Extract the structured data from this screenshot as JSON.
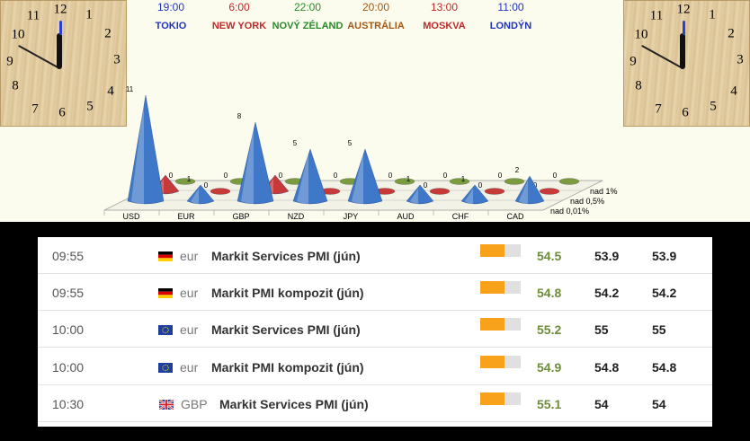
{
  "world_times": [
    {
      "time": "19:00",
      "city": "TOKIO",
      "color": "#2233bb"
    },
    {
      "time": "6:00",
      "city": "NEW YORK",
      "color": "#c0282a"
    },
    {
      "time": "22:00",
      "city": "NOVÝ ZÉLAND",
      "color": "#2a8a2a"
    },
    {
      "time": "20:00",
      "city": "AUSTRÁLIA",
      "color": "#a25a14"
    },
    {
      "time": "13:00",
      "city": "MOSKVA",
      "color": "#c0282a"
    },
    {
      "time": "11:00",
      "city": "LONDÝN",
      "color": "#2233bb"
    }
  ],
  "clock_numbers": [
    "12",
    "1",
    "2",
    "3",
    "4",
    "5",
    "6",
    "7",
    "8",
    "9",
    "10",
    "11"
  ],
  "chart_data": {
    "type": "bar",
    "categories": [
      "USD",
      "EUR",
      "GBP",
      "NZD",
      "JPY",
      "AUD",
      "CHF",
      "CAD"
    ],
    "series": [
      {
        "name": "nad 0,01%",
        "values": [
          11,
          1,
          8,
          5,
          5,
          1,
          1,
          2
        ]
      },
      {
        "name": "nad 0,5%",
        "values": [
          1,
          0,
          1,
          0,
          0,
          0,
          0,
          0
        ]
      },
      {
        "name": "nad 1%",
        "values": [
          0,
          0,
          0,
          0,
          0,
          0,
          0,
          0
        ]
      }
    ],
    "colors": [
      "#3f78c8",
      "#c63a3a",
      "#7a9c3e"
    ],
    "ylim": [
      0,
      11
    ]
  },
  "events": [
    {
      "time": "09:55",
      "flag": "de",
      "currency": "eur",
      "event": "Markit Services PMI (jún)",
      "impact": 0.6,
      "actual": "54.5",
      "forecast": "53.9",
      "previous": "53.9"
    },
    {
      "time": "09:55",
      "flag": "de",
      "currency": "eur",
      "event": "Markit PMI kompozit (jún)",
      "impact": 0.6,
      "actual": "54.8",
      "forecast": "54.2",
      "previous": "54.2"
    },
    {
      "time": "10:00",
      "flag": "eu",
      "currency": "eur",
      "event": "Markit Services PMI (jún)",
      "impact": 0.6,
      "actual": "55.2",
      "forecast": "55",
      "previous": "55"
    },
    {
      "time": "10:00",
      "flag": "eu",
      "currency": "eur",
      "event": "Markit PMI kompozit (jún)",
      "impact": 0.6,
      "actual": "54.9",
      "forecast": "54.8",
      "previous": "54.8"
    },
    {
      "time": "10:30",
      "flag": "gb",
      "currency": "GBP",
      "event": "Markit Services PMI (jún)",
      "impact": 0.6,
      "actual": "55.1",
      "forecast": "54",
      "previous": "54"
    }
  ]
}
